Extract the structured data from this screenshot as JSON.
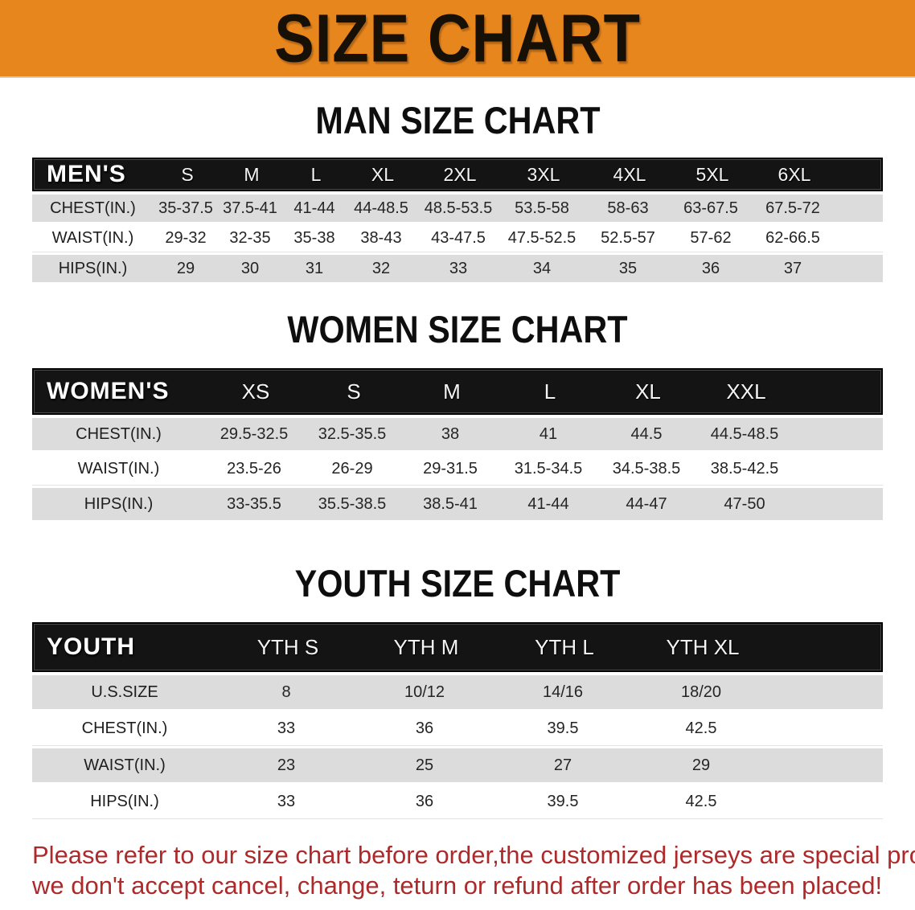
{
  "banner": {
    "title": "SIZE CHART",
    "bg_color": "#E8861E",
    "text_color": "#161007"
  },
  "sections": [
    {
      "heading": "MAN SIZE CHART",
      "table": {
        "corner_label": "MEN'S",
        "columns": [
          "S",
          "M",
          "L",
          "XL",
          "2XL",
          "3XL",
          "4XL",
          "5XL",
          "6XL"
        ],
        "rows": [
          {
            "label": "CHEST(IN.)",
            "values": [
              "35-37.5",
              "37.5-41",
              "41-44",
              "44-48.5",
              "48.5-53.5",
              "53.5-58",
              "58-63",
              "63-67.5",
              "67.5-72"
            ]
          },
          {
            "label": "WAIST(IN.)",
            "values": [
              "29-32",
              "32-35",
              "35-38",
              "38-43",
              "43-47.5",
              "47.5-52.5",
              "52.5-57",
              "57-62",
              "62-66.5"
            ]
          },
          {
            "label": "HIPS(IN.)",
            "values": [
              "29",
              "30",
              "31",
              "32",
              "33",
              "34",
              "35",
              "36",
              "37"
            ]
          }
        ]
      }
    },
    {
      "heading": "WOMEN SIZE CHART",
      "table": {
        "corner_label": "WOMEN'S",
        "columns": [
          "XS",
          "S",
          "M",
          "L",
          "XL",
          "XXL"
        ],
        "rows": [
          {
            "label": "CHEST(IN.)",
            "values": [
              "29.5-32.5",
              "32.5-35.5",
              "38",
              "41",
              "44.5",
              "44.5-48.5"
            ]
          },
          {
            "label": "WAIST(IN.)",
            "values": [
              "23.5-26",
              "26-29",
              "29-31.5",
              "31.5-34.5",
              "34.5-38.5",
              "38.5-42.5"
            ]
          },
          {
            "label": "HIPS(IN.)",
            "values": [
              "33-35.5",
              "35.5-38.5",
              "38.5-41",
              "41-44",
              "44-47",
              "47-50"
            ]
          }
        ]
      }
    },
    {
      "heading": "YOUTH SIZE CHART",
      "table": {
        "corner_label": "YOUTH",
        "columns": [
          "YTH S",
          "YTH M",
          "YTH L",
          "YTH XL"
        ],
        "rows": [
          {
            "label": "U.S.SIZE",
            "values": [
              "8",
              "10/12",
              "14/16",
              "18/20"
            ]
          },
          {
            "label": "CHEST(IN.)",
            "values": [
              "33",
              "36",
              "39.5",
              "42.5"
            ]
          },
          {
            "label": "WAIST(IN.)",
            "values": [
              "23",
              "25",
              "27",
              "29"
            ]
          },
          {
            "label": "HIPS(IN.)",
            "values": [
              "33",
              "36",
              "39.5",
              "42.5"
            ]
          }
        ]
      }
    }
  ],
  "footnote": {
    "line1": "Please refer to our size chart before order,the customized jerseys are special products,",
    "line2": "we don't accept cancel, change, teturn or refund after order has been placed!",
    "color": "#AD2A2B"
  }
}
